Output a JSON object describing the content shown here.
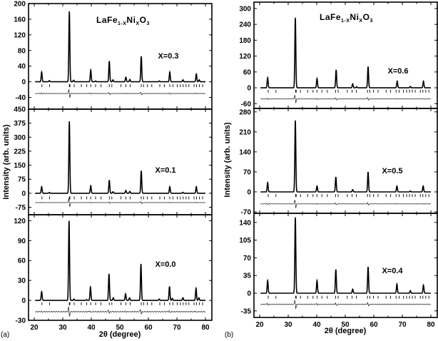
{
  "figure": {
    "title_parts": [
      "LaFe",
      "1-X",
      "Ni",
      "X",
      "O",
      "3"
    ],
    "xlabel": "2θ (degree)",
    "ylabel": "Intensity (arb. units)",
    "panel_tags": [
      "(a)",
      "(b)"
    ]
  },
  "chart_data": [
    {
      "type": "line",
      "figure": "a",
      "label": "X=0.3",
      "xlim": [
        20,
        80
      ],
      "xticks": [
        20,
        30,
        40,
        50,
        60,
        70,
        80
      ],
      "ylim": [
        -70,
        200
      ],
      "yticks": [
        -40,
        0,
        40,
        80,
        120,
        160,
        200
      ],
      "peaks": [
        [
          22.6,
          25
        ],
        [
          25.3,
          3
        ],
        [
          32.3,
          180
        ],
        [
          33.8,
          4
        ],
        [
          39.8,
          30
        ],
        [
          41.5,
          2
        ],
        [
          46.3,
          53
        ],
        [
          47.6,
          5
        ],
        [
          52.1,
          12
        ],
        [
          53.5,
          6
        ],
        [
          57.5,
          65
        ],
        [
          63.8,
          2
        ],
        [
          67.5,
          25
        ],
        [
          72.1,
          5
        ],
        [
          76.8,
          20
        ],
        [
          77.8,
          5
        ]
      ],
      "bragg_level": -10,
      "difference_offset": -30
    },
    {
      "type": "line",
      "figure": "a",
      "label": "X=0.1",
      "xlim": [
        20,
        80
      ],
      "xticks": [
        20,
        30,
        40,
        50,
        60,
        70,
        80
      ],
      "ylim": [
        -115,
        450
      ],
      "yticks": [
        -75,
        0,
        75,
        150,
        225,
        300,
        375,
        450
      ],
      "peaks": [
        [
          22.6,
          35
        ],
        [
          25.3,
          4
        ],
        [
          32.3,
          385
        ],
        [
          39.8,
          40
        ],
        [
          46.3,
          70
        ],
        [
          47.6,
          8
        ],
        [
          52.1,
          15
        ],
        [
          53.5,
          10
        ],
        [
          57.5,
          120
        ],
        [
          67.5,
          35
        ],
        [
          72.1,
          5
        ],
        [
          76.8,
          35
        ]
      ],
      "bragg_level": -25,
      "difference_offset": -50
    },
    {
      "type": "line",
      "figure": "a",
      "label": "X=0.0",
      "xlim": [
        20,
        80
      ],
      "xticks": [
        20,
        30,
        40,
        50,
        60,
        70,
        80
      ],
      "ylim": [
        -30,
        129
      ],
      "yticks": [
        -30,
        0,
        30,
        60,
        90,
        120
      ],
      "peaks": [
        [
          22.6,
          13
        ],
        [
          32.2,
          120
        ],
        [
          33.9,
          2
        ],
        [
          38.3,
          1
        ],
        [
          39.7,
          20
        ],
        [
          46.2,
          40
        ],
        [
          47.7,
          4
        ],
        [
          52.0,
          10
        ],
        [
          53.4,
          4
        ],
        [
          57.4,
          55
        ],
        [
          63.8,
          2
        ],
        [
          67.4,
          21
        ],
        [
          68.4,
          3
        ],
        [
          72.1,
          4
        ],
        [
          76.7,
          18
        ],
        [
          77.7,
          4
        ]
      ],
      "bragg_level": -5,
      "difference_offset": -17
    },
    {
      "type": "line",
      "figure": "b",
      "label": "X=0.6",
      "xlim": [
        20,
        80
      ],
      "xticks": [
        20,
        30,
        40,
        50,
        60,
        70,
        80
      ],
      "ylim": [
        -78,
        324
      ],
      "yticks": [
        -60,
        0,
        60,
        120,
        180,
        240,
        300
      ],
      "peaks": [
        [
          22.8,
          38
        ],
        [
          32.5,
          265
        ],
        [
          40.1,
          35
        ],
        [
          46.8,
          68
        ],
        [
          52.6,
          15
        ],
        [
          54,
          4
        ],
        [
          58.0,
          80
        ],
        [
          68.2,
          25
        ],
        [
          72.8,
          5
        ],
        [
          77.4,
          25
        ]
      ],
      "bragg_level": -13,
      "difference_offset": -42
    },
    {
      "type": "line",
      "figure": "b",
      "label": "X=0.5",
      "xlim": [
        20,
        80
      ],
      "xticks": [
        20,
        30,
        40,
        50,
        60,
        70,
        80
      ],
      "ylim": [
        -75,
        292
      ],
      "yticks": [
        -70,
        0,
        70,
        140,
        210,
        280
      ],
      "peaks": [
        [
          22.8,
          32
        ],
        [
          32.5,
          250
        ],
        [
          40.1,
          20
        ],
        [
          46.7,
          52
        ],
        [
          52.6,
          8
        ],
        [
          58.0,
          70
        ],
        [
          68.1,
          20
        ],
        [
          72.8,
          3
        ],
        [
          77.3,
          20
        ]
      ],
      "bragg_level": -13,
      "difference_offset": -42
    },
    {
      "type": "line",
      "figure": "b",
      "label": "X=0.4",
      "xlim": [
        20,
        80
      ],
      "xticks": [
        20,
        30,
        40,
        50,
        60,
        70,
        80
      ],
      "ylim": [
        -48,
        158
      ],
      "yticks": [
        -35,
        0,
        35,
        70,
        105,
        140
      ],
      "peaks": [
        [
          22.8,
          25
        ],
        [
          32.5,
          150
        ],
        [
          40.1,
          25
        ],
        [
          46.7,
          47
        ],
        [
          52.6,
          8
        ],
        [
          58.0,
          52
        ],
        [
          68.1,
          18
        ],
        [
          72.8,
          5
        ],
        [
          77.4,
          16
        ]
      ],
      "bragg_level": -8,
      "difference_offset": -22
    }
  ],
  "bragg_positions": [
    22.7,
    25.4,
    32.3,
    32.5,
    34.0,
    36.5,
    38.4,
    39.8,
    41.5,
    43.4,
    46.3,
    47.2,
    50.4,
    52.1,
    53.6,
    57.5,
    58.3,
    59.6,
    61.2,
    64.0,
    65.6,
    67.5,
    68.6,
    70.1,
    71.2,
    72.2,
    73.2,
    74.2,
    76.0,
    76.9,
    77.9,
    79.0
  ]
}
